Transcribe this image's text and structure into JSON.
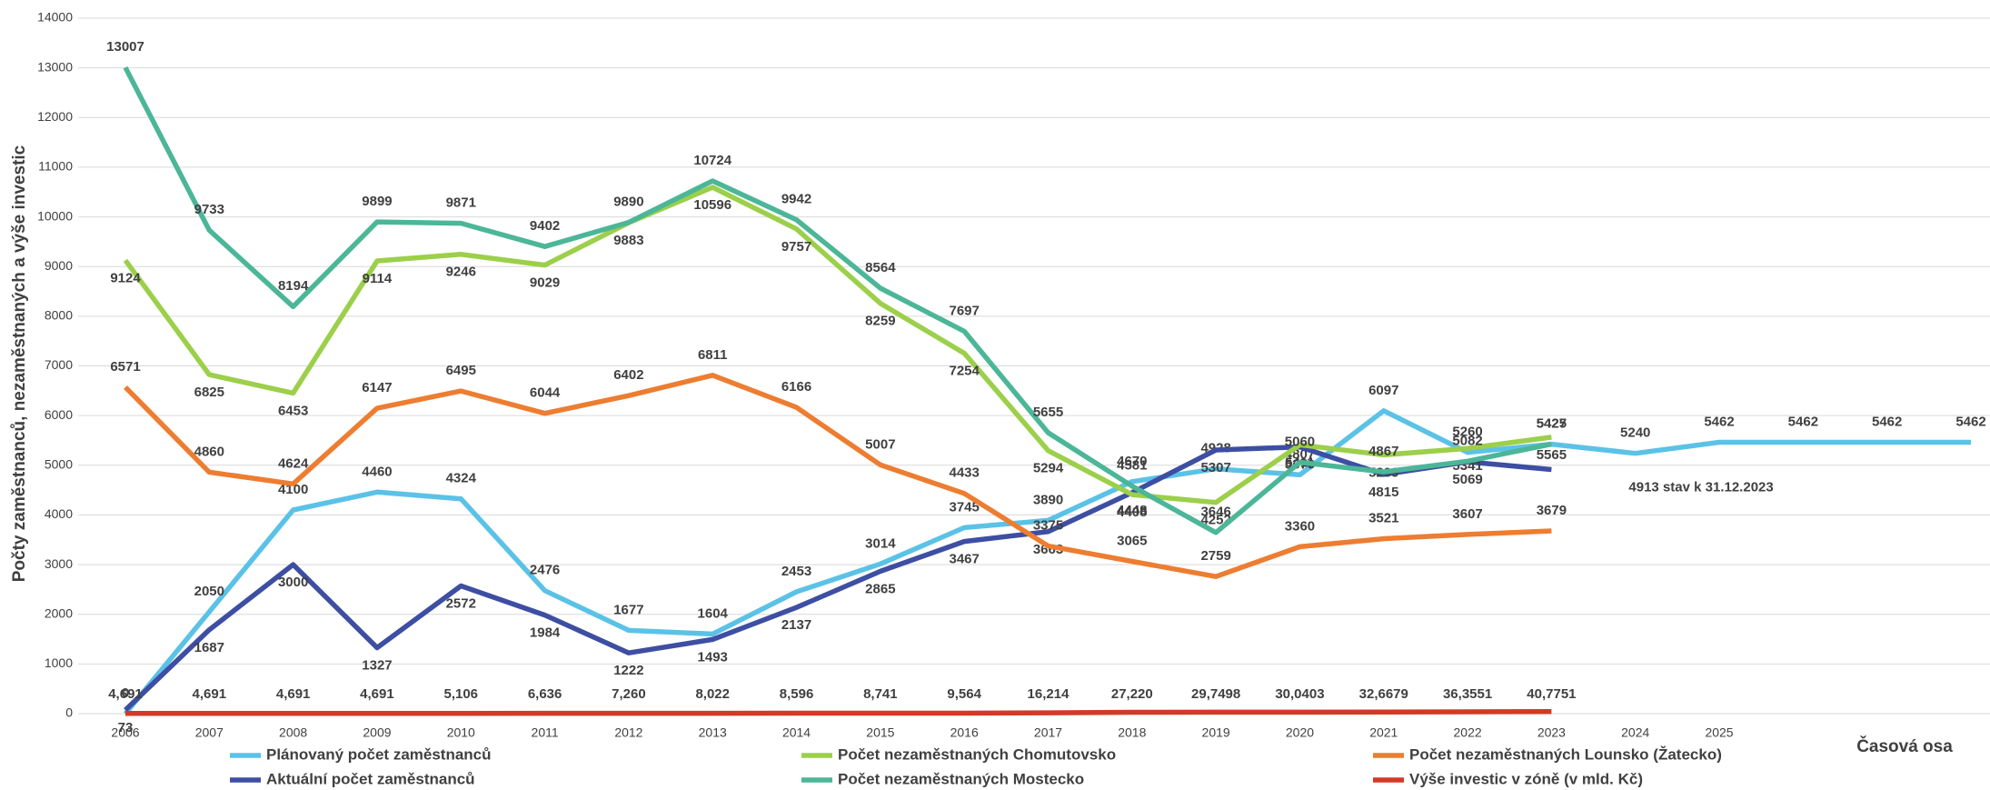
{
  "chart_data": {
    "type": "line",
    "y_label": "Počty zaměstnanců, nezaměstnaných a výše investic",
    "x_label": "Časová osa",
    "categories": [
      "2006",
      "2007",
      "2008",
      "2009",
      "2010",
      "2011",
      "2012",
      "2013",
      "2014",
      "2015",
      "2016",
      "2017",
      "2018",
      "2019",
      "2020",
      "2021",
      "2022",
      "2023",
      "2024",
      "2025",
      null,
      null,
      null
    ],
    "ylim": [
      0,
      14000
    ],
    "yticks": [
      0,
      1000,
      2000,
      3000,
      4000,
      5000,
      6000,
      7000,
      8000,
      9000,
      10000,
      11000,
      12000,
      13000,
      14000
    ],
    "grid": true,
    "series": [
      {
        "name": "Plánovaný počet zaměstnanců",
        "color": "#5bc2e7",
        "values": [
          0,
          2050,
          4100,
          4460,
          4324,
          2476,
          1677,
          1604,
          2453,
          3014,
          3745,
          3890,
          4670,
          4928,
          4807,
          6097,
          5260,
          5425,
          5240,
          5462,
          5462,
          5462,
          5462
        ]
      },
      {
        "name": "Aktuální počet zaměstnanců",
        "color": "#3d4ea3",
        "values": [
          73,
          1687,
          3000,
          1327,
          2572,
          1984,
          1222,
          1493,
          2137,
          2865,
          3467,
          3663,
          4448,
          5307,
          5370,
          4815,
          5069,
          4913,
          null,
          null,
          null,
          null,
          null
        ],
        "value_labels": [
          "73",
          "1687",
          "3000",
          "1327",
          "2572",
          "1984",
          "1222",
          "1493",
          "2137",
          "2865",
          "3467",
          "3663",
          "4448",
          "5307",
          "5370",
          "4815",
          "5069",
          "4913 stav k 31.12.2023",
          null,
          null,
          null,
          null,
          null
        ]
      },
      {
        "name": "Počet nezaměstnaných Chomutovsko",
        "color": "#9ccf4a",
        "values": [
          9124,
          6825,
          6453,
          9114,
          9246,
          9029,
          9883,
          10596,
          9757,
          8259,
          7254,
          5294,
          4408,
          4252,
          5411,
          5209,
          5341,
          5565,
          null,
          null,
          null,
          null,
          null
        ]
      },
      {
        "name": "Počet nezaměstnaných Mostecko",
        "color": "#4cb698",
        "values": [
          13007,
          9733,
          8194,
          9899,
          9871,
          9402,
          9890,
          10724,
          9942,
          8564,
          7697,
          5655,
          4581,
          3646,
          5060,
          4867,
          5082,
          5427,
          null,
          null,
          null,
          null,
          null
        ]
      },
      {
        "name": "Počet nezaměstnaných Lounsko (Žatecko)",
        "color": "#ed7d31",
        "values": [
          6571,
          4860,
          4624,
          6147,
          6495,
          6044,
          6402,
          6811,
          6166,
          5007,
          4433,
          3375,
          3065,
          2759,
          3360,
          3521,
          3607,
          3679,
          null,
          null,
          null,
          null,
          null
        ]
      },
      {
        "name": "Výše investic v zóně (v mld. Kč)",
        "color": "#d23a26",
        "values": [
          4.691,
          4.691,
          4.691,
          4.691,
          5.106,
          6.636,
          7.26,
          8.022,
          8.596,
          8.741,
          9.564,
          16.214,
          27.22,
          29.7498,
          30.0403,
          32.6679,
          36.3551,
          40.7751,
          null,
          null,
          null,
          null,
          null
        ],
        "value_labels": [
          "4,691",
          "4,691",
          "4,691",
          "4,691",
          "5,106",
          "6,636",
          "7,260",
          "8,022",
          "8,596",
          "8,741",
          "9,564",
          "16,214",
          "27,220",
          "29,7498",
          "30,0403",
          "32,6679",
          "36,3551",
          "40,7751",
          null,
          null,
          null,
          null,
          null
        ]
      }
    ]
  }
}
